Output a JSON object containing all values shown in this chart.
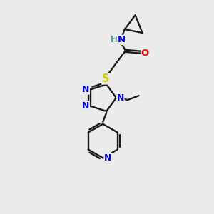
{
  "background_color": "#ebebeb",
  "bond_color": "#1a1a1a",
  "atom_colors": {
    "N": "#0000ee",
    "O": "#ff0000",
    "S": "#cccc00",
    "H": "#4a9090",
    "C": "#1a1a1a"
  },
  "figsize": [
    3.0,
    3.0
  ],
  "dpi": 100,
  "bond_lw": 1.7,
  "font_size": 9.5
}
